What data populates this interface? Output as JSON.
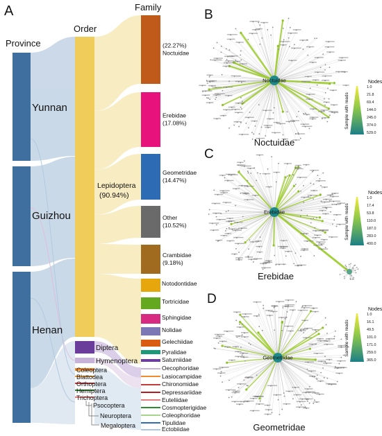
{
  "panels": {
    "A": "A",
    "B": "B",
    "C": "C",
    "D": "D"
  },
  "sankey": {
    "column_titles": {
      "province": "Province",
      "order": "Order",
      "family": "Family"
    },
    "provinces": [
      "Yunnan",
      "Guizhou",
      "Henan"
    ],
    "orders": {
      "lepidoptera": {
        "name": "Lepidoptera",
        "pct": "(90.94%)"
      },
      "diptera": "Diptera",
      "hymenoptera": "Hymenoptera",
      "coleoptera": "Coleoptera",
      "blattodea": "Blattodea",
      "orthoptera": "Orthoptera",
      "hemiptera": "Hemiptera",
      "trichoptera": "Trichoptera",
      "psocoptera": "Psocoptera",
      "neuroptera": "Neuroptera",
      "megaloptera": "Megaloptera"
    },
    "families_major": [
      {
        "name": "Noctuidae",
        "pct": "(22.27%)",
        "color": "#c05a1a"
      },
      {
        "name": "Erebidae",
        "pct": "(17.08%)",
        "color": "#e8127c"
      },
      {
        "name": "Geometridae",
        "pct": "(14.47%)",
        "color": "#2e6bb5"
      },
      {
        "name": "Other",
        "pct": "(10.52%)",
        "color": "#6a6a6a"
      },
      {
        "name": "Crambidae",
        "pct": "(9.18%)",
        "color": "#a06a1f"
      }
    ],
    "families_minor": [
      {
        "name": "Notodontidae",
        "color": "#e6a70c"
      },
      {
        "name": "Tortricidae",
        "color": "#63a81f"
      },
      {
        "name": "Sphingidae",
        "color": "#d62b80"
      },
      {
        "name": "Nolidae",
        "color": "#7b78b5"
      },
      {
        "name": "Gelechiidae",
        "color": "#d95c10"
      },
      {
        "name": "Pyralidae",
        "color": "#1b9a7a"
      },
      {
        "name": "Saturniidae",
        "color": "#6b3f9e"
      },
      {
        "name": "Oecophoridae",
        "color": "#c8b3d8"
      },
      {
        "name": "Lasiocampidae",
        "color": "#f08a2a"
      },
      {
        "name": "Chironomidae",
        "color": "#c23a3a"
      },
      {
        "name": "Depressariidae",
        "color": "#b71c1c"
      },
      {
        "name": "Euteliidae",
        "color": "#e57a7a"
      },
      {
        "name": "Cosmopterigidae",
        "color": "#2e8b2e"
      },
      {
        "name": "Coleophoridae",
        "color": "#a7d48a"
      },
      {
        "name": "Tipulidae",
        "color": "#2a6fb0"
      },
      {
        "name": "Ectobiidae",
        "color": "#a7c7e7"
      }
    ]
  },
  "networks": [
    {
      "panel": "B",
      "center": "Noctuidae",
      "caption": "Noctuidae",
      "legend_title": "Nodes",
      "legend_axis": "Sample with reads",
      "ticks": [
        "1.0",
        "21.8",
        "69.4",
        "144.0",
        "245.0",
        "374.0",
        "529.0"
      ]
    },
    {
      "panel": "C",
      "center": "Erebidae",
      "caption": "Erebidae",
      "legend_title": "Nodes",
      "legend_axis": "Sample with reads",
      "ticks": [
        "1.0",
        "17.4",
        "53.8",
        "110.0",
        "187.0",
        "283.0",
        "400.0"
      ]
    },
    {
      "panel": "D",
      "center": "Geometridae",
      "caption": "Geometridae",
      "legend_title": "Nodes",
      "legend_axis": "Sample with reads",
      "ticks": [
        "1.0",
        "16.1",
        "49.5",
        "101.0",
        "171.0",
        "259.0",
        "365.0"
      ]
    }
  ],
  "colors": {
    "province": "#3f6f9e",
    "order_lep": "#f0cc5a",
    "order_dip": "#6a3d9a",
    "flow_blue": "#c5d5e6",
    "flow_yellow": "#f7e9b8",
    "node_green": "#9ccc2c",
    "hub_teal": "#1f8a8a"
  }
}
